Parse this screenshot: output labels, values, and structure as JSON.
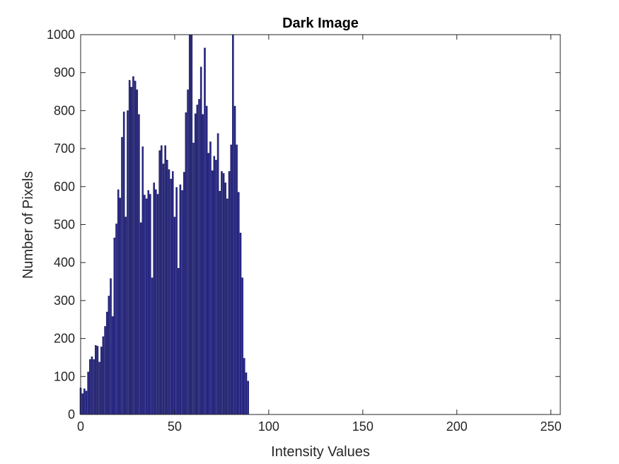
{
  "chart_data": {
    "type": "bar",
    "title": "Dark Image",
    "xlabel": "Intensity Values",
    "ylabel": "Number of Pixels",
    "xlim": [
      0,
      255
    ],
    "ylim": [
      0,
      1000
    ],
    "xticks": [
      0,
      50,
      100,
      150,
      200,
      250
    ],
    "yticks": [
      0,
      100,
      200,
      300,
      400,
      500,
      600,
      700,
      800,
      900,
      1000
    ],
    "bar_color": "#2a2a8a",
    "bar_edge_color": "#0b0b4a",
    "grid": false,
    "x": [
      0,
      1,
      2,
      3,
      4,
      5,
      6,
      7,
      8,
      9,
      10,
      11,
      12,
      13,
      14,
      15,
      16,
      17,
      18,
      19,
      20,
      21,
      22,
      23,
      24,
      25,
      26,
      27,
      28,
      29,
      30,
      31,
      32,
      33,
      34,
      35,
      36,
      37,
      38,
      39,
      40,
      41,
      42,
      43,
      44,
      45,
      46,
      47,
      48,
      49,
      50,
      51,
      52,
      53,
      54,
      55,
      56,
      57,
      58,
      59,
      60,
      61,
      62,
      63,
      64,
      65,
      66,
      67,
      68,
      69,
      70,
      71,
      72,
      73,
      74,
      75,
      76,
      77,
      78,
      79,
      80,
      81,
      82,
      83,
      84,
      85,
      86,
      87,
      88,
      89,
      90
    ],
    "values": [
      70,
      55,
      68,
      62,
      112,
      145,
      152,
      145,
      182,
      180,
      138,
      178,
      205,
      232,
      270,
      312,
      358,
      258,
      465,
      502,
      592,
      570,
      730,
      797,
      520,
      800,
      880,
      862,
      890,
      878,
      855,
      790,
      505,
      705,
      578,
      568,
      590,
      580,
      360,
      610,
      592,
      580,
      695,
      708,
      660,
      708,
      670,
      645,
      620,
      640,
      520,
      598,
      385,
      605,
      590,
      638,
      795,
      855,
      1000,
      1000,
      715,
      792,
      815,
      830,
      915,
      790,
      965,
      812,
      688,
      718,
      642,
      680,
      670,
      740,
      588,
      640,
      635,
      610,
      568,
      640,
      710,
      1000,
      812,
      710,
      585,
      478,
      360,
      148,
      110,
      88,
      0
    ]
  }
}
